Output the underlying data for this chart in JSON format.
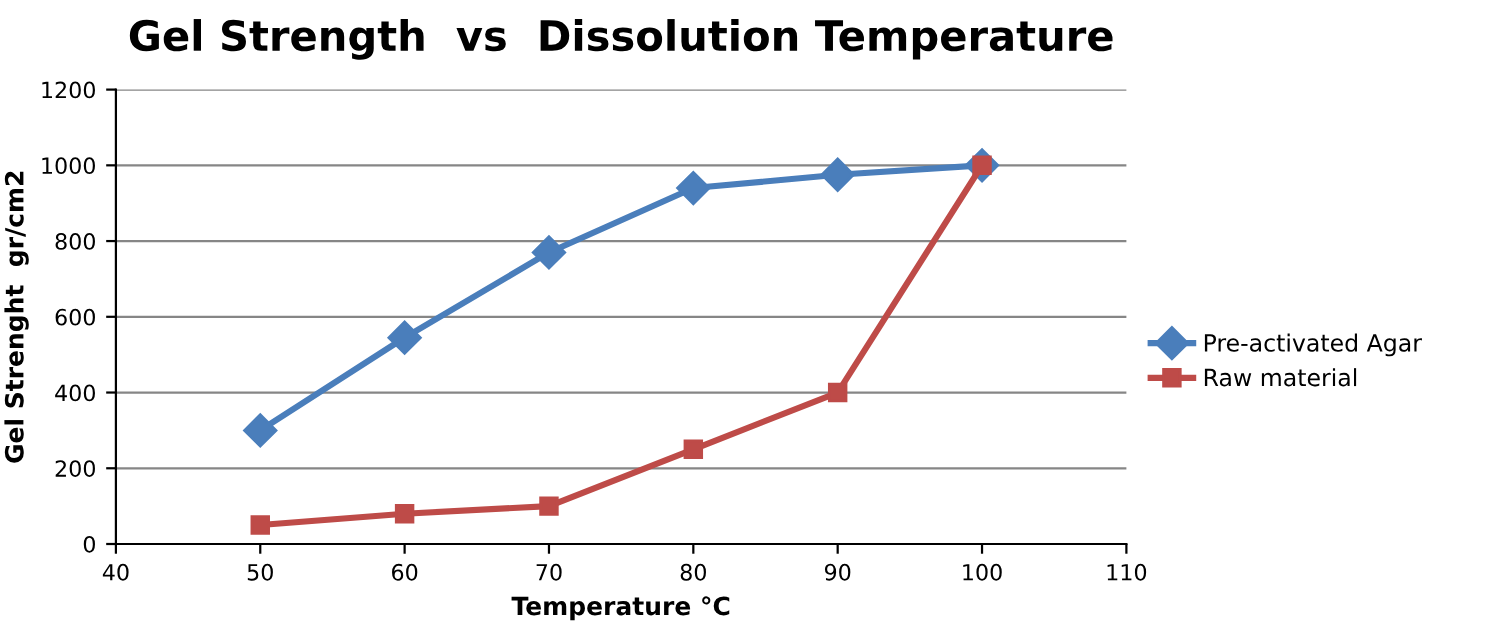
{
  "chart_data": {
    "type": "line",
    "title": "Gel Strength  vs  Dissolution Temperature",
    "xlabel": "Temperature °C",
    "ylabel": "Gel Strenght  gr/cm2",
    "x": [
      50,
      60,
      70,
      80,
      90,
      100
    ],
    "series": [
      {
        "name": "Pre-activated Agar",
        "color": "#4a7ebb",
        "marker": "diamond",
        "values": [
          300,
          545,
          770,
          940,
          975,
          1000
        ]
      },
      {
        "name": "Raw material",
        "color": "#be4b48",
        "marker": "square",
        "values": [
          50,
          80,
          100,
          250,
          400,
          1000
        ]
      }
    ],
    "xlim": [
      40,
      110
    ],
    "xticks": [
      40,
      50,
      60,
      70,
      80,
      90,
      100,
      110
    ],
    "ylim": [
      0,
      1200
    ],
    "yticks": [
      0,
      200,
      400,
      600,
      800,
      1000,
      1200
    ],
    "grid": "y",
    "legend": "right",
    "line_style": "solid"
  }
}
